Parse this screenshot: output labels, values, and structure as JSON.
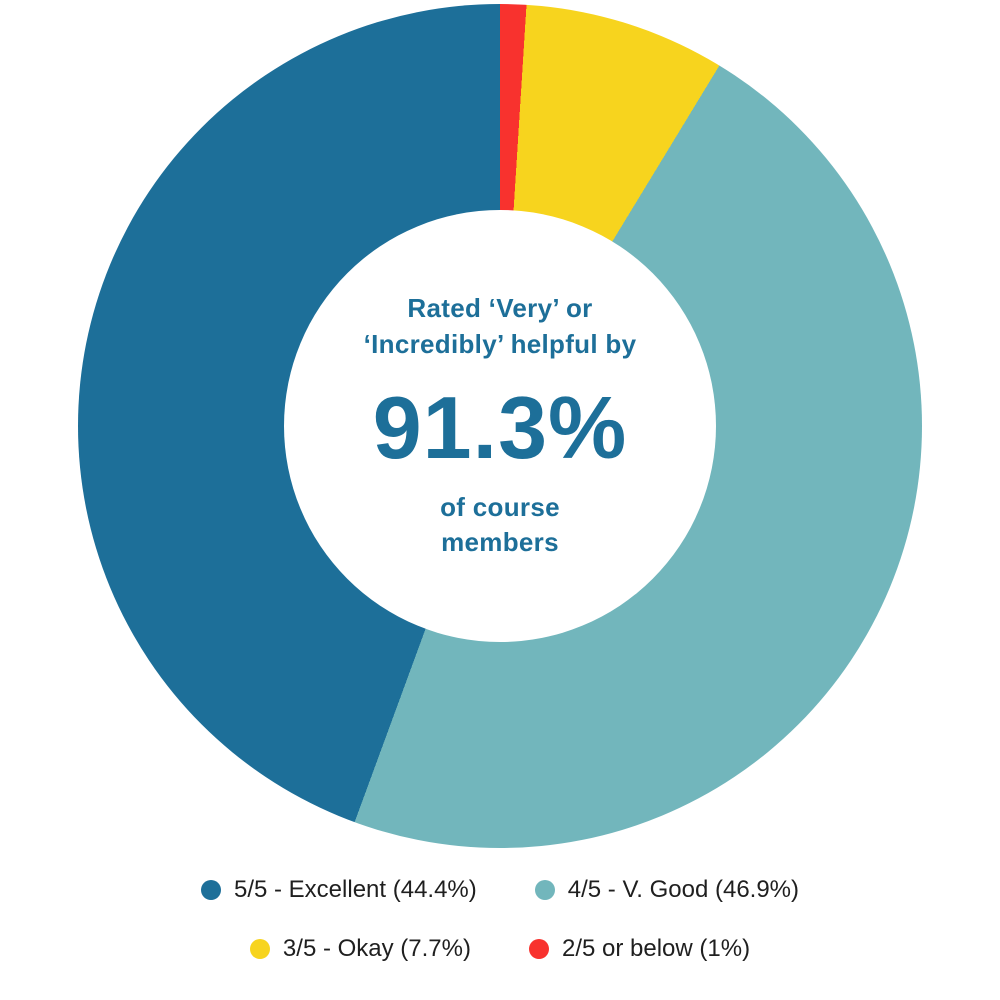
{
  "chart_data": {
    "type": "pie",
    "subtype": "donut",
    "start_angle_deg": 0,
    "direction": "clockwise",
    "title": "",
    "legend_position": "bottom",
    "segments": [
      {
        "label": "2/5 or below",
        "pct": 1.0,
        "color": "#f8322e"
      },
      {
        "label": "3/5 - Okay",
        "pct": 7.7,
        "color": "#f7d41e"
      },
      {
        "label": "4/5 - V. Good",
        "pct": 46.9,
        "color": "#72b6bc"
      },
      {
        "label": "5/5 - Excellent",
        "pct": 44.4,
        "color": "#1d6f99"
      }
    ],
    "legend": [
      {
        "label": "5/5 - Excellent (44.4%)",
        "color": "#1d6f99"
      },
      {
        "label": "4/5 - V. Good (46.9%)",
        "color": "#72b6bc"
      },
      {
        "label": "3/5 - Okay (7.7%)",
        "color": "#f7d41e"
      },
      {
        "label": "2/5 or below (1%)",
        "color": "#f8322e"
      }
    ],
    "center": {
      "line1": "Rated ‘Very’ or",
      "line2": "‘Incredibly’ helpful by",
      "value": "91.3%",
      "line3": "of course",
      "line4": "members"
    },
    "colors": {
      "accent_text": "#1d6f99",
      "legend_text": "#1f1f1f",
      "background": "#ffffff"
    }
  }
}
